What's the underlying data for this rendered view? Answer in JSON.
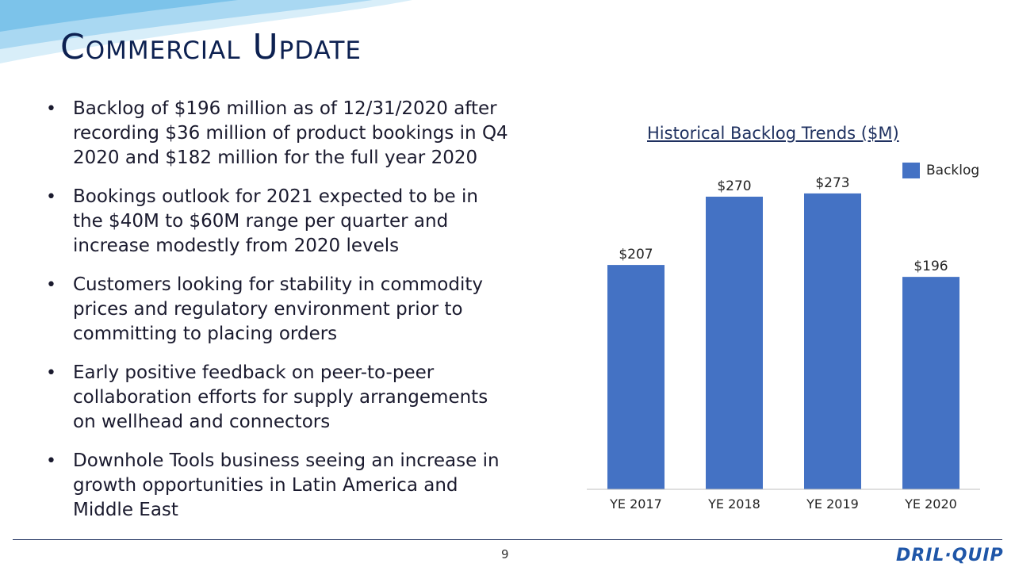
{
  "slide": {
    "title": "Commercial Update",
    "page_number": "9",
    "logo_text": "DRIL-QUIP"
  },
  "bullets": [
    "Backlog of $196 million as of 12/31/2020 after recording $36 million of product bookings in Q4 2020 and $182 million for the full year 2020",
    "Bookings outlook for 2021 expected to be in the $40M to $60M range per quarter and increase modestly from 2020 levels",
    "Customers looking for stability in commodity prices and regulatory environment prior to committing to placing orders",
    "Early positive feedback on peer-to-peer collaboration efforts for supply arrangements on wellhead and connectors",
    "Downhole Tools business seeing an increase in growth opportunities in Latin America and Middle East"
  ],
  "colors": {
    "bar": "#4472c4",
    "title": "#0d2151",
    "swoosh_light": "#bfe0f4",
    "swoosh_dark": "#7cc3ea"
  },
  "chart_data": {
    "type": "bar",
    "title": "Historical Backlog Trends ($M)",
    "categories": [
      "YE 2017",
      "YE 2018",
      "YE 2019",
      "YE 2020"
    ],
    "series": [
      {
        "name": "Backlog",
        "values": [
          207,
          270,
          273,
          196
        ]
      }
    ],
    "data_labels": [
      "$207",
      "$270",
      "$273",
      "$196"
    ],
    "ylim": [
      0,
      300
    ],
    "grid": false,
    "legend": "top-right"
  }
}
